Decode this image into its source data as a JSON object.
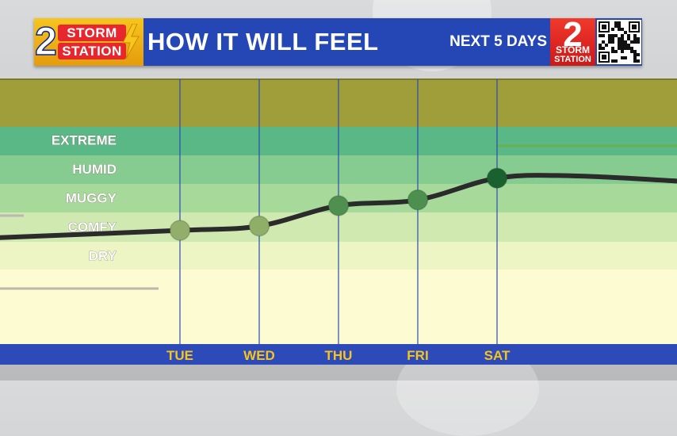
{
  "header": {
    "logo_left": {
      "number": "2",
      "line1": "STORM",
      "line2": "STATION"
    },
    "title": "HOW IT WILL FEEL",
    "subtitle": "NEXT 5 DAYS",
    "logo_right": {
      "number": "2",
      "line1": "STORM",
      "line2": "STATION"
    }
  },
  "chart_data": {
    "type": "line",
    "title": "HOW IT WILL FEEL",
    "categories": [
      "TUE",
      "WED",
      "THU",
      "FRI",
      "SAT"
    ],
    "y_categories": [
      "DRY",
      "COMFY",
      "MUGGY",
      "HUMID",
      "EXTREME"
    ],
    "ylim": [
      0,
      5
    ],
    "values": [
      1.35,
      1.5,
      2.2,
      2.4,
      3.15
    ],
    "curve_start": 1.1,
    "curve_end": 3.05,
    "grid": "vertical day lines",
    "band_colors": [
      "#fdfbd2",
      "#ecf5c3",
      "#cfe9b0",
      "#a7da9a",
      "#86cc90",
      "#5ab886",
      "#9f9e3b"
    ],
    "marker_colors": [
      "#93ae6b",
      "#8fae67",
      "#4f8f50",
      "#4d8f4e",
      "#19622f"
    ],
    "line_color": "#2b2b2b",
    "axis_bar_color": "#2c4bb8",
    "day_label_color": "#f7c31e",
    "accent_line_color": "#6ab04c"
  }
}
